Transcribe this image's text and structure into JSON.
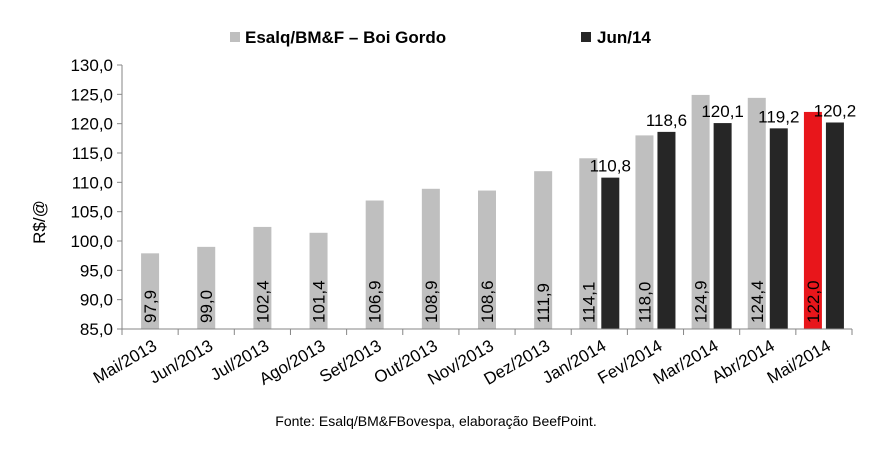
{
  "chart_data": {
    "type": "bar",
    "ylabel": "R$/@",
    "ylim": [
      85,
      130
    ],
    "yticks": [
      "85,0",
      "90,0",
      "95,0",
      "100,0",
      "105,0",
      "110,0",
      "115,0",
      "120,0",
      "125,0",
      "130,0"
    ],
    "ytick_values": [
      85,
      90,
      95,
      100,
      105,
      110,
      115,
      120,
      125,
      130
    ],
    "categories": [
      "Mai/2013",
      "Jun/2013",
      "Jul/2013",
      "Ago/2013",
      "Set/2013",
      "Out/2013",
      "Nov/2013",
      "Dez/2013",
      "Jan/2014",
      "Fev/2014",
      "Mar/2014",
      "Abr/2014",
      "Mai/2014"
    ],
    "legend_position": "top",
    "grid": false,
    "series": [
      {
        "name": "Esalq/BM&F – Boi Gordo",
        "color": "#bfbfbf",
        "values": [
          97.9,
          99.0,
          102.4,
          101.4,
          106.9,
          108.9,
          108.6,
          111.9,
          114.1,
          118.0,
          124.9,
          124.4,
          122.0
        ],
        "labels": [
          "97,9",
          "99,0",
          "102,4",
          "101,4",
          "106,9",
          "108,9",
          "108,6",
          "111,9",
          "114,1",
          "118,0",
          "124,9",
          "124,4",
          "122,0"
        ],
        "highlight": {
          "index": 12,
          "color": "#e8161b"
        }
      },
      {
        "name": "Jun/14",
        "color": "#262626",
        "values": [
          null,
          null,
          null,
          null,
          null,
          null,
          null,
          null,
          110.8,
          118.6,
          120.1,
          119.2,
          120.2
        ],
        "labels": [
          "",
          "",
          "",
          "",
          "",
          "",
          "",
          "",
          "110,8",
          "118,6",
          "120,1",
          "119,2",
          "120,2"
        ]
      }
    ]
  },
  "source": "Fonte: Esalq/BM&FBovespa, elaboração BeefPoint."
}
